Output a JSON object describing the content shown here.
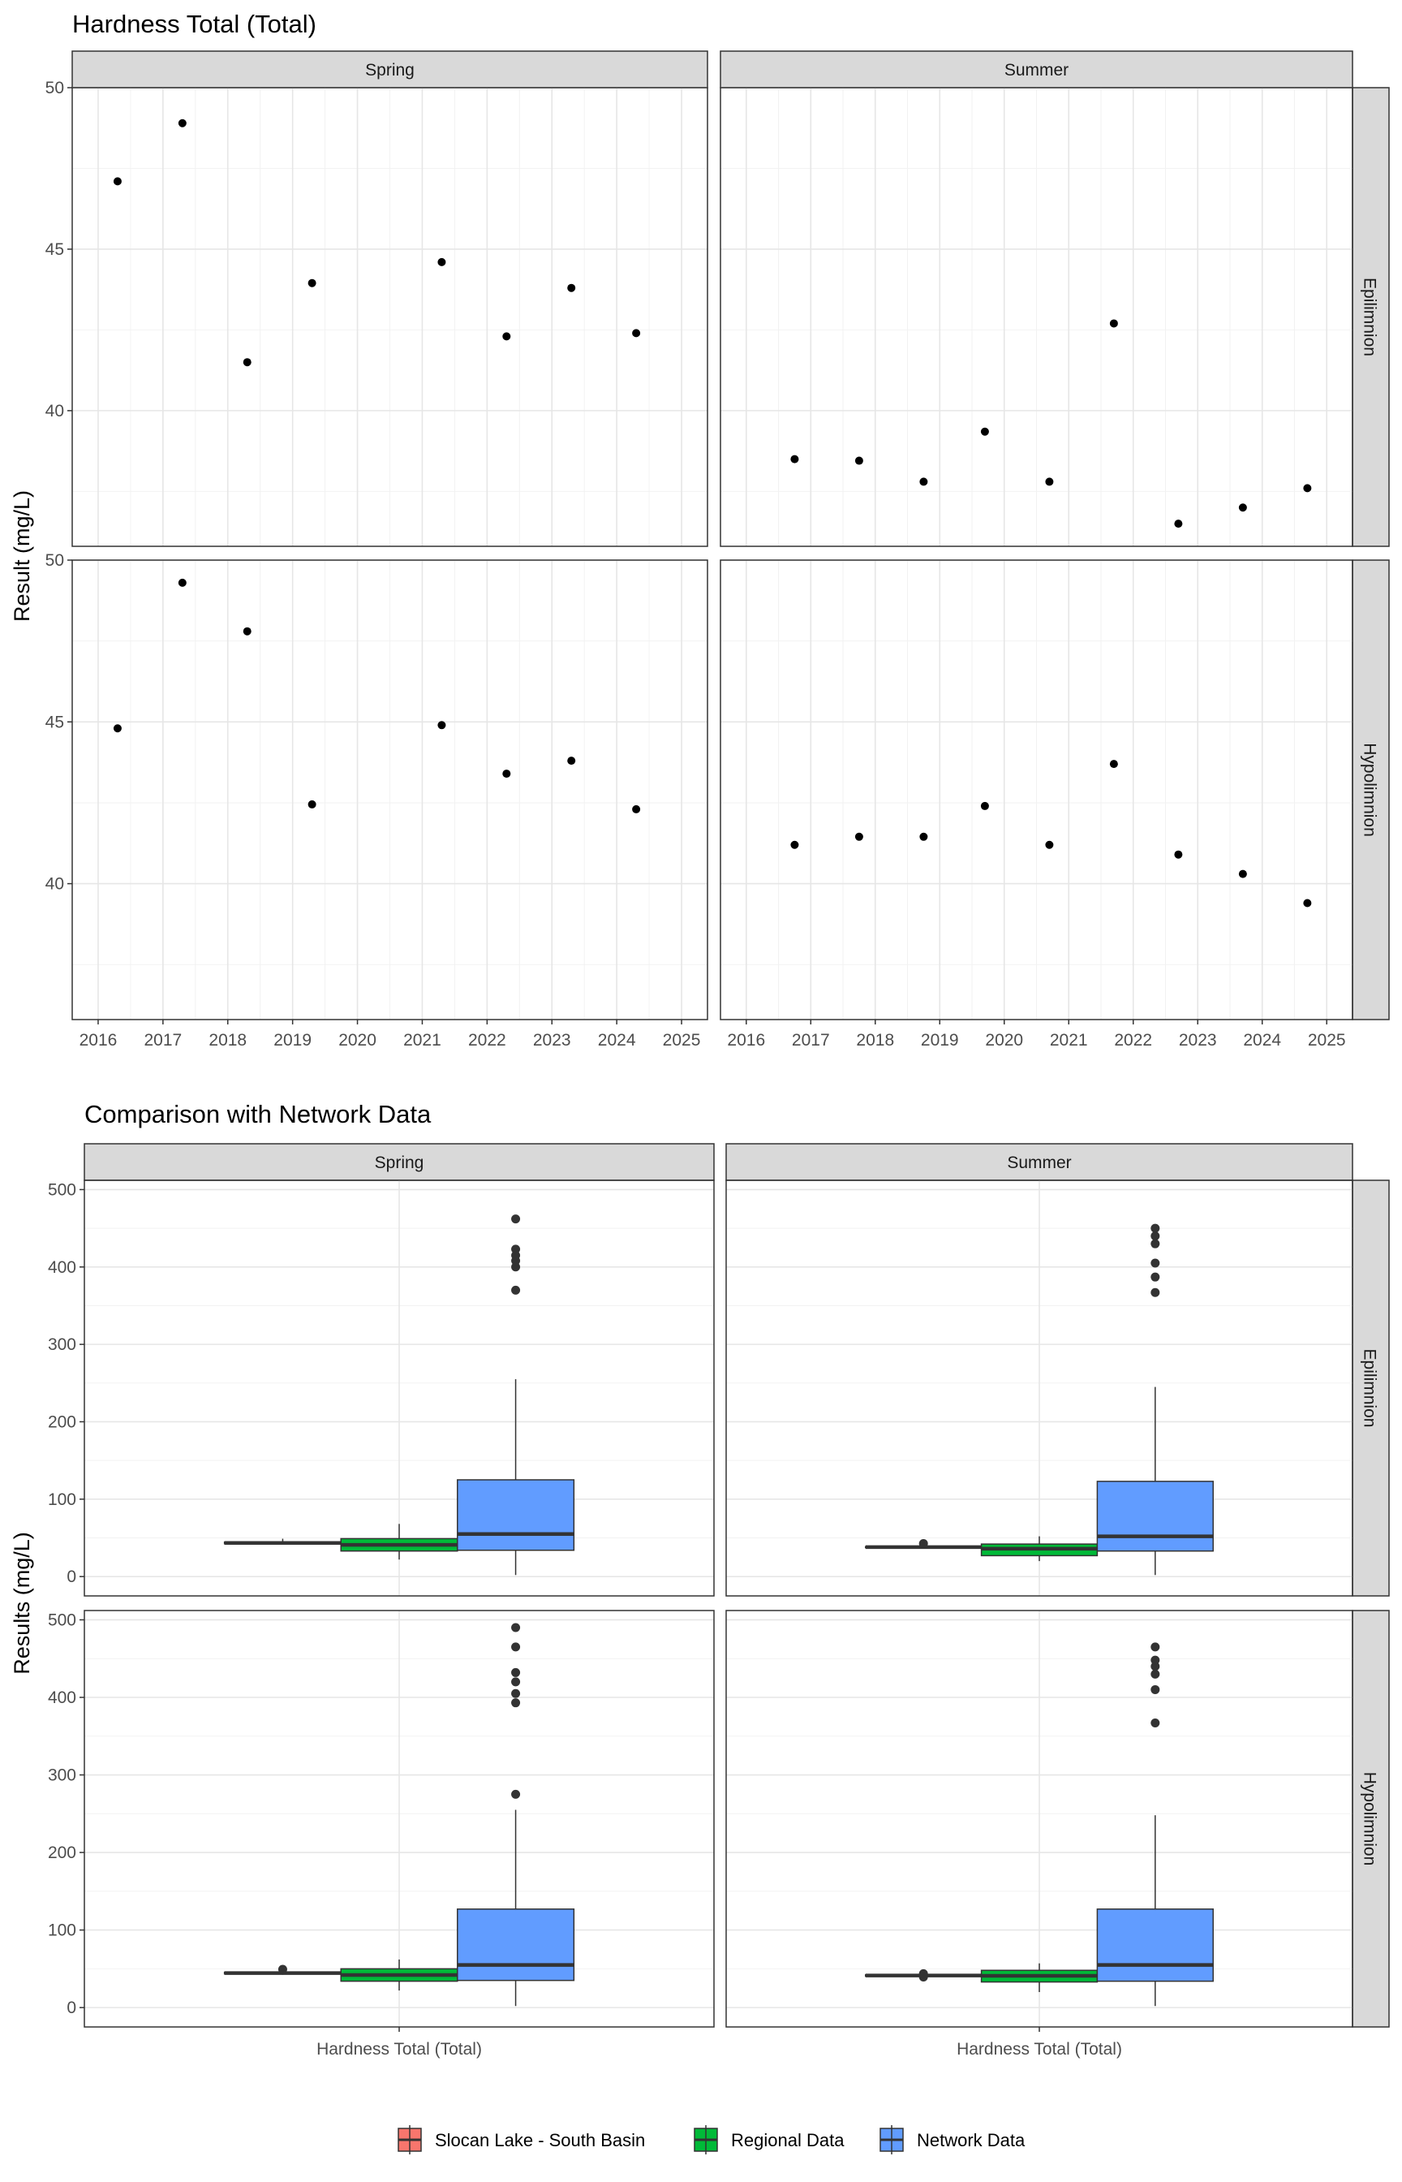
{
  "chart_data": [
    {
      "type": "scatter",
      "title": "Hardness Total (Total)",
      "ylabel": "Result (mg/L)",
      "xlabel": "",
      "x_ticks": [
        "2016",
        "2017",
        "2018",
        "2019",
        "2020",
        "2021",
        "2022",
        "2023",
        "2024",
        "2025"
      ],
      "xlim": [
        2015.6,
        2025.4
      ],
      "y_ticks": [
        "40",
        "45",
        "50"
      ],
      "ylim": [
        35.8,
        50.0
      ],
      "grid": true,
      "columns": [
        "Spring",
        "Summer"
      ],
      "rows": [
        "Epilimnion",
        "Hypolimnion"
      ],
      "panels": [
        {
          "column": "Spring",
          "row": "Epilimnion",
          "points": [
            [
              2016.3,
              47.1
            ],
            [
              2017.3,
              48.9
            ],
            [
              2018.3,
              41.5
            ],
            [
              2019.3,
              43.95
            ],
            [
              2021.3,
              44.6
            ],
            [
              2022.3,
              42.3
            ],
            [
              2023.3,
              43.8
            ],
            [
              2024.3,
              42.4
            ]
          ]
        },
        {
          "column": "Summer",
          "row": "Epilimnion",
          "points": [
            [
              2016.75,
              38.5
            ],
            [
              2017.75,
              38.45
            ],
            [
              2018.75,
              37.8
            ],
            [
              2019.7,
              39.35
            ],
            [
              2020.7,
              37.8
            ],
            [
              2021.7,
              42.7
            ],
            [
              2022.7,
              36.5
            ],
            [
              2023.7,
              37.0
            ],
            [
              2024.7,
              37.6
            ]
          ]
        },
        {
          "column": "Spring",
          "row": "Hypolimnion",
          "points": [
            [
              2016.3,
              44.8
            ],
            [
              2017.3,
              49.3
            ],
            [
              2018.3,
              47.8
            ],
            [
              2019.3,
              42.45
            ],
            [
              2021.3,
              44.9
            ],
            [
              2022.3,
              43.4
            ],
            [
              2023.3,
              43.8
            ],
            [
              2024.3,
              42.3
            ]
          ]
        },
        {
          "column": "Summer",
          "row": "Hypolimnion",
          "points": [
            [
              2016.75,
              41.2
            ],
            [
              2017.75,
              41.45
            ],
            [
              2018.75,
              41.45
            ],
            [
              2019.7,
              42.4
            ],
            [
              2020.7,
              41.2
            ],
            [
              2021.7,
              43.7
            ],
            [
              2022.7,
              40.9
            ],
            [
              2023.7,
              40.3
            ],
            [
              2024.7,
              39.4
            ]
          ]
        }
      ]
    },
    {
      "type": "box",
      "title": "Comparison with Network Data",
      "ylabel": "Results (mg/L)",
      "xlabel": "",
      "categories": [
        "Hardness Total (Total)"
      ],
      "y_ticks": [
        "0",
        "100",
        "200",
        "300",
        "400",
        "500"
      ],
      "ylim": [
        -25,
        512
      ],
      "grid": true,
      "columns": [
        "Spring",
        "Summer"
      ],
      "rows": [
        "Epilimnion",
        "Hypolimnion"
      ],
      "legend_position": "bottom",
      "legend": [
        {
          "name": "Slocan Lake - South Basin",
          "color": "#F8766D"
        },
        {
          "name": "Regional Data",
          "color": "#00BA38"
        },
        {
          "name": "Network Data",
          "color": "#619CFF"
        }
      ],
      "panels": [
        {
          "column": "Spring",
          "row": "Epilimnion",
          "boxes": [
            {
              "series": "Slocan Lake - South Basin",
              "min": 41.5,
              "q1": 42.5,
              "median": 43.5,
              "q3": 44.5,
              "max": 48.9,
              "outliers": []
            },
            {
              "series": "Regional Data",
              "min": 22,
              "q1": 33,
              "median": 41,
              "q3": 49,
              "max": 68,
              "outliers": []
            },
            {
              "series": "Network Data",
              "min": 2,
              "q1": 34,
              "median": 55,
              "q3": 125,
              "max": 255,
              "outliers": [
                370,
                400,
                408,
                415,
                423,
                462
              ]
            }
          ]
        },
        {
          "column": "Summer",
          "row": "Epilimnion",
          "boxes": [
            {
              "series": "Slocan Lake - South Basin",
              "min": 36.5,
              "q1": 37.5,
              "median": 38,
              "q3": 38.5,
              "max": 39.4,
              "outliers": [
                42.7
              ]
            },
            {
              "series": "Regional Data",
              "min": 20,
              "q1": 27,
              "median": 36,
              "q3": 42,
              "max": 52,
              "outliers": []
            },
            {
              "series": "Network Data",
              "min": 2,
              "q1": 33,
              "median": 52,
              "q3": 123,
              "max": 245,
              "outliers": [
                367,
                387,
                405,
                430,
                440,
                450
              ]
            }
          ]
        },
        {
          "column": "Spring",
          "row": "Hypolimnion",
          "boxes": [
            {
              "series": "Slocan Lake - South Basin",
              "min": 42.3,
              "q1": 43.5,
              "median": 44.5,
              "q3": 45.5,
              "max": 47.8,
              "outliers": [
                49.3
              ]
            },
            {
              "series": "Regional Data",
              "min": 22,
              "q1": 34,
              "median": 42,
              "q3": 50,
              "max": 62,
              "outliers": []
            },
            {
              "series": "Network Data",
              "min": 2,
              "q1": 35,
              "median": 55,
              "q3": 127,
              "max": 255,
              "outliers": [
                275,
                393,
                405,
                420,
                432,
                465,
                490
              ]
            }
          ]
        },
        {
          "column": "Summer",
          "row": "Hypolimnion",
          "boxes": [
            {
              "series": "Slocan Lake - South Basin",
              "min": 39.4,
              "q1": 40.5,
              "median": 41.3,
              "q3": 42.2,
              "max": 43.7,
              "outliers": [
                39.4,
                43.7
              ]
            },
            {
              "series": "Regional Data",
              "min": 20,
              "q1": 33,
              "median": 41,
              "q3": 48,
              "max": 57,
              "outliers": []
            },
            {
              "series": "Network Data",
              "min": 2,
              "q1": 34,
              "median": 55,
              "q3": 127,
              "max": 248,
              "outliers": [
                367,
                410,
                430,
                440,
                448,
                465
              ]
            }
          ]
        }
      ]
    }
  ]
}
